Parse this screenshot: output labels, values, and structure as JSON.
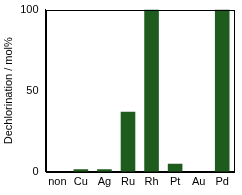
{
  "chart_data": {
    "type": "bar",
    "y_label": "Dechlorination / mol%",
    "categories": [
      "non",
      "Cu",
      "Ag",
      "Ru",
      "Rh",
      "Pt",
      "Au",
      "Pd"
    ],
    "values": [
      0,
      1.5,
      1.5,
      37,
      100,
      5,
      0,
      100
    ],
    "color": "#1e5c1e",
    "ylim": [
      0,
      100
    ],
    "yticks": [
      0,
      50,
      100
    ],
    "grid": false
  }
}
